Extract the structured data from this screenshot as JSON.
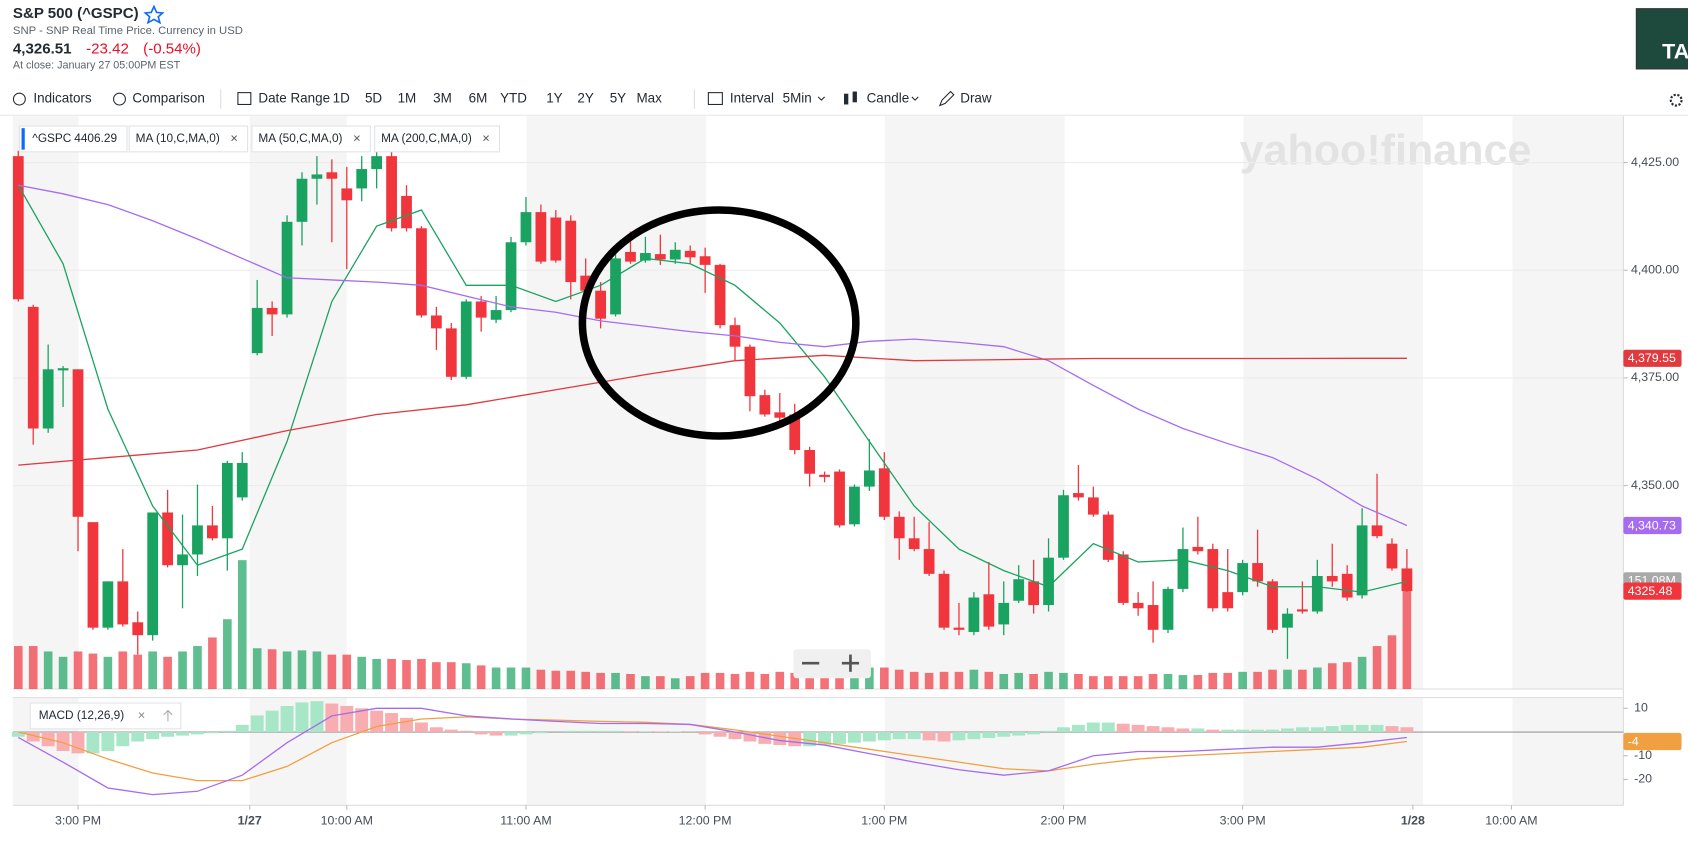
{
  "header": {
    "title": "S&P 500 (^GSPC)",
    "subtitle": "SNP - SNP Real Time Price. Currency in USD",
    "price": "4,326.51",
    "change": "-23.42",
    "change_pct": "(-0.54%)",
    "close_note": "At close: January 27 05:00PM EST"
  },
  "ad": "TA",
  "toolbar": {
    "indicators": "Indicators",
    "comparison": "Comparison",
    "date_range": "Date Range",
    "ranges": [
      "1D",
      "5D",
      "1M",
      "3M",
      "6M",
      "YTD",
      "1Y",
      "2Y",
      "5Y",
      "Max"
    ],
    "interval": "Interval",
    "interval_value": "5Min",
    "chart_type": "Candle",
    "draw": "Draw"
  },
  "chart_data": {
    "type": "candlestick",
    "symbol": "^GSPC",
    "legend_value": 4406.29,
    "watermark": "yahoo!finance",
    "categories": [
      null,
      null,
      null,
      null,
      null,
      null,
      null,
      null,
      null,
      null,
      null,
      null,
      null,
      null,
      null,
      null,
      null,
      null,
      null,
      null,
      null,
      null,
      null,
      null,
      null,
      null,
      null,
      null,
      null,
      null,
      null,
      null,
      null,
      null,
      null,
      null,
      null,
      null,
      null,
      null,
      null,
      null,
      null,
      null,
      null,
      null,
      null,
      null,
      null,
      null,
      null,
      null,
      null,
      null,
      null,
      null,
      null,
      null,
      null,
      null,
      null,
      null,
      null,
      null,
      null,
      null,
      null,
      null,
      null,
      null,
      null,
      null,
      null,
      null,
      null,
      null,
      null,
      null,
      null,
      null,
      null,
      null,
      null,
      null,
      null,
      null,
      null,
      null,
      null,
      null,
      null,
      null,
      null,
      null
    ],
    "xlim": [
      -0.36,
      107.5
    ],
    "xticks": [
      {
        "value": 4,
        "label": "3:00 PM"
      },
      {
        "value": 15.5,
        "label": "1/27"
      },
      {
        "value": 22,
        "label": "10:00 AM"
      },
      {
        "value": 34,
        "label": "11:00 AM"
      },
      {
        "value": 46,
        "label": "12:00 PM"
      },
      {
        "value": 58,
        "label": "1:00 PM"
      },
      {
        "value": 70,
        "label": "2:00 PM"
      },
      {
        "value": 82,
        "label": "3:00 PM"
      },
      {
        "value": 93.4,
        "label": "1/28"
      },
      {
        "value": 100,
        "label": "10:00 AM"
      }
    ],
    "ylim": [
      4302.75,
      4435.75
    ],
    "yticks": [
      {
        "value": 4425,
        "label": "4,425.00"
      },
      {
        "value": 4400,
        "label": "4,400.00"
      },
      {
        "value": 4375,
        "label": "4,375.00"
      },
      {
        "value": 4350,
        "label": "4,350.00"
      }
    ],
    "grid": true,
    "up_color": "#1aa260",
    "down_color": "#f0353d",
    "open": [
      4426.5,
      4391.5,
      4363.25,
      4376.75,
      4377,
      4341.5,
      4317,
      4327.75,
      4318.25,
      4315.25,
      4343.75,
      4331.5,
      4334,
      4340.75,
      4337.75,
      4347.25,
      4380.75,
      4391.25,
      4389.75,
      4411.25,
      4421.25,
      4422.75,
      4419,
      4419,
      4423.5,
      4426.5,
      4417.25,
      4409.75,
      4389.5,
      4386.5,
      4375.25,
      4392.75,
      4388.5,
      4390.75,
      4406.5,
      4413.5,
      4412.25,
      4411.5,
      4398.75,
      4395.25,
      4389.75,
      4404.25,
      4402.25,
      4403.75,
      4402.5,
      4404.5,
      4403.25,
      4401.25,
      4387.25,
      4382.25,
      4371,
      4367,
      4366.5,
      4358.25,
      4352.5,
      4353.25,
      4341,
      4349.75,
      4354,
      4342.75,
      4337.75,
      4335.25,
      4329.5,
      4317,
      4316,
      4324.75,
      4317.75,
      4323.25,
      4327.75,
      4322.25,
      4333.25,
      4348.25,
      4347.25,
      4343.25,
      4334,
      4322.75,
      4322.25,
      4316.5,
      4326,
      4335.75,
      4335.25,
      4325.25,
      4325.25,
      4332,
      4327.75,
      4317,
      4321.25,
      4320.75,
      4329,
      4329.5,
      4324.5,
      4340.75,
      4336.5,
      4330.75
    ],
    "high": [
      4427.75,
      4392,
      4382.75,
      4377.75,
      4377,
      4341.5,
      4327.75,
      4335.25,
      4320.75,
      4343.75,
      4349,
      4343.25,
      4350.25,
      4345.25,
      4355.75,
      4357.75,
      4397.75,
      4392.75,
      4412.75,
      4422.75,
      4426.5,
      4425.75,
      4424,
      4426.5,
      4427.75,
      4427.75,
      4419.75,
      4410.25,
      4391.5,
      4387.75,
      4393.25,
      4394,
      4394,
      4407.75,
      4417,
      4415.25,
      4414,
      4412.75,
      4402.75,
      4397.25,
      4404,
      4409,
      4407.75,
      4408.25,
      4406.5,
      4405.75,
      4405.25,
      4401.5,
      4389,
      4382.75,
      4372.25,
      4371.5,
      4369,
      4359,
      4353.25,
      4353.75,
      4350.25,
      4360.75,
      4357.75,
      4344,
      4342.75,
      4341.5,
      4330.25,
      4322.75,
      4325.25,
      4332.25,
      4327.75,
      4331.5,
      4332.75,
      4337.75,
      4349,
      4354.75,
      4349.75,
      4344,
      4334.75,
      4325.25,
      4327.75,
      4326.5,
      4340.25,
      4342.75,
      4336.5,
      4335.25,
      4332.75,
      4339.75,
      4328.25,
      4321.5,
      4327.75,
      4332.75,
      4336.5,
      4331.5,
      4344.75,
      4352.75,
      4337.75,
      4335.25
    ],
    "low": [
      4392.75,
      4359.5,
      4362.25,
      4368.25,
      4334.75,
      4316.5,
      4316.5,
      4317.25,
      4310.75,
      4314,
      4331,
      4321.5,
      4329,
      4337.25,
      4330.25,
      4346.5,
      4380.25,
      4384.75,
      4389,
      4405.75,
      4415.25,
      4406.5,
      4400.25,
      4416,
      4419,
      4409,
      4409,
      4389,
      4381.5,
      4374.5,
      4374.75,
      4385.75,
      4387.75,
      4390.25,
      4405.75,
      4401.5,
      4401.75,
      4393.25,
      4392.75,
      4386.5,
      4389.25,
      4401.5,
      4401.75,
      4401.25,
      4401.5,
      4401.5,
      4394.75,
      4386.5,
      4379,
      4367.25,
      4366,
      4364,
      4357.25,
      4349.75,
      4350.75,
      4340.25,
      4340.5,
      4348.75,
      4342,
      4332.75,
      4334.75,
      4329,
      4316.5,
      4315.25,
      4315.25,
      4316.5,
      4315.25,
      4322.75,
      4320.25,
      4320.75,
      4332.75,
      4346.5,
      4342.75,
      4332.25,
      4322.25,
      4319.75,
      4313.5,
      4315.75,
      4325.25,
      4334,
      4320.75,
      4320.75,
      4324.5,
      4326.5,
      4315.75,
      4309.75,
      4320.25,
      4320.25,
      4326.5,
      4323.25,
      4323.75,
      4337.75,
      4330.25,
      4325.25
    ],
    "close": [
      4393.25,
      4363.25,
      4377,
      4377.25,
      4342.75,
      4317,
      4327.75,
      4317.75,
      4315.25,
      4343.75,
      4331.5,
      4334,
      4340.75,
      4337.75,
      4355.25,
      4355.25,
      4391.25,
      4389.75,
      4411.25,
      4421.25,
      4422.25,
      4421.25,
      4416.25,
      4423.5,
      4426.5,
      4409.75,
      4409.75,
      4389.5,
      4386.5,
      4375.25,
      4392.75,
      4389,
      4390.75,
      4406.5,
      4413.5,
      4402,
      4402.25,
      4397.25,
      4395.25,
      4388.75,
      4402.75,
      4402,
      4404,
      4402.5,
      4404.75,
      4403,
      4401.25,
      4387.25,
      4382.25,
      4370.75,
      4366.5,
      4365.75,
      4358.25,
      4352.75,
      4352,
      4340.75,
      4349.75,
      4353.5,
      4342.75,
      4337.75,
      4335.25,
      4329.5,
      4317,
      4316.5,
      4324,
      4317.25,
      4322.75,
      4328.25,
      4322.25,
      4333.25,
      4347.75,
      4347.25,
      4343.25,
      4332.75,
      4322.75,
      4321.5,
      4316.5,
      4326,
      4335.25,
      4334.75,
      4321.5,
      4321.5,
      4332,
      4327.75,
      4316.5,
      4320.25,
      4320.75,
      4329,
      4327.75,
      4324,
      4340.75,
      4338.25,
      4330.75,
      4325.5
    ],
    "last_value": 4325.48,
    "volume": [
      60,
      60,
      52.5,
      45,
      52.5,
      49.5,
      45,
      52.5,
      48,
      52.5,
      45,
      52.5,
      60,
      72,
      97.5,
      180,
      57,
      55.5,
      52.5,
      54,
      52.5,
      48,
      48,
      45,
      42,
      42,
      40.5,
      42,
      37.5,
      37.5,
      36,
      33,
      30,
      30,
      30,
      27,
      25.5,
      25.5,
      24,
      22.5,
      22.5,
      21,
      18,
      18,
      15,
      18,
      22.5,
      22.5,
      21,
      24,
      21,
      24,
      22.5,
      22.5,
      27,
      30,
      30,
      30,
      30,
      27,
      24,
      22.5,
      24,
      24,
      27,
      24,
      21,
      22.5,
      21,
      24,
      22.5,
      21,
      18,
      18,
      18,
      18,
      21,
      21,
      19.5,
      19.5,
      22.5,
      22.5,
      24,
      24,
      27,
      27,
      27,
      30,
      36,
      37.5,
      45,
      60,
      75,
      151.08
    ],
    "volume_lim": [
      0,
      800
    ],
    "volume_last": {
      "value": 151.08,
      "label": "151.08M"
    },
    "series": [
      {
        "name": "MA (10,C,MA,0)",
        "color": "#1aa260",
        "x": [
          0,
          3,
          6,
          9,
          12,
          15,
          18,
          21,
          24,
          27,
          30,
          33,
          36,
          39,
          42,
          45,
          48,
          51,
          54,
          57,
          60,
          63,
          66,
          69,
          72,
          75,
          78,
          81,
          84,
          87,
          90,
          93
        ],
        "values": [
          4419.75,
          4401.5,
          4367.75,
          4345.25,
          4331.5,
          4335.25,
          4360.25,
          4392.75,
          4410.25,
          4414,
          4396.5,
          4396.5,
          4392.75,
          4396.5,
          4402.75,
          4401.5,
          4396.5,
          4387.75,
          4375.25,
          4360.25,
          4345.25,
          4335.25,
          4330.25,
          4326.5,
          4336.5,
          4332.25,
          4332.75,
          4330.25,
          4326.5,
          4326.5,
          4325.25,
          4327.75
        ]
      },
      {
        "name": "MA (50,C,MA,0)",
        "color": "#a66cf0",
        "x": [
          0,
          3,
          6,
          9,
          12,
          15,
          18,
          21,
          24,
          27,
          30,
          33,
          36,
          39,
          42,
          45,
          48,
          51,
          54,
          57,
          60,
          63,
          66,
          69,
          72,
          75,
          78,
          81,
          84,
          87,
          90,
          93
        ],
        "values": [
          4419.75,
          4417.75,
          4415.25,
          4411.5,
          4407.25,
          4402.75,
          4398.25,
          4397.75,
          4397.25,
          4396.5,
          4394,
          4391.5,
          4390.25,
          4388.25,
          4387,
          4385.75,
          4384.75,
          4383.25,
          4382.25,
          4383.5,
          4384,
          4383.25,
          4382.25,
          4379,
          4373.25,
          4367.75,
          4363.25,
          4359.75,
          4356.5,
          4351.5,
          4345.25,
          4340.73
        ],
        "last_value": {
          "value": 4340.73,
          "label": "4,340.73"
        }
      },
      {
        "name": "MA (200,C,MA,0)",
        "color": "#e0393e",
        "x": [
          0,
          6,
          12,
          18,
          24,
          30,
          36,
          42,
          48,
          54,
          60,
          66,
          72,
          78,
          84,
          90,
          93
        ],
        "values": [
          4354.75,
          4356.5,
          4358.25,
          4362.75,
          4366.5,
          4368.75,
          4372.25,
          4375.75,
          4379,
          4380.25,
          4379,
          4379.25,
          4379.5,
          4379.5,
          4379.5,
          4379.55,
          4379.55
        ],
        "last_value": {
          "value": 4379.55,
          "label": "4,379.55"
        }
      }
    ],
    "macd": {
      "name": "MACD (12,26,9)",
      "ylim": [
        -30.9,
        14.5
      ],
      "yticks": [
        10,
        -10,
        -20
      ],
      "macd_color": "#a66cf0",
      "signal_color": "#f0a040",
      "up_color": "#a8e6c8",
      "down_color": "#f8aeb0",
      "x": [
        0,
        3,
        6,
        9,
        12,
        15,
        18,
        21,
        24,
        27,
        30,
        33,
        36,
        39,
        42,
        45,
        48,
        51,
        54,
        57,
        60,
        63,
        66,
        69,
        72,
        75,
        78,
        81,
        84,
        87,
        90,
        93
      ],
      "macd": [
        -2.3,
        -12.7,
        -23.6,
        -26.4,
        -25,
        -18.2,
        -4.5,
        6.8,
        10,
        10,
        6.8,
        5.5,
        4.5,
        3.6,
        3.6,
        3.2,
        0,
        -3.6,
        -5.5,
        -9.1,
        -12.7,
        -15.9,
        -18.2,
        -16.4,
        -10,
        -8.2,
        -8.2,
        -7.3,
        -6.4,
        -6.4,
        -4.5,
        -2.3
      ],
      "signal": [
        0,
        -4.5,
        -11.4,
        -17.3,
        -20.5,
        -20.5,
        -14.5,
        -4.5,
        2.3,
        5.5,
        6.4,
        5.5,
        5,
        4.5,
        4.1,
        3.2,
        0.9,
        -1.8,
        -4.5,
        -7.3,
        -10,
        -12.7,
        -15.5,
        -16.4,
        -13.6,
        -11.4,
        -10,
        -9.1,
        -8.2,
        -7.3,
        -6.4,
        -4
      ],
      "histogram": [
        -2,
        -4,
        -6,
        -8,
        -9,
        -9,
        -8,
        -6,
        -4,
        -3,
        -2,
        -1.5,
        -1,
        -0.5,
        0.5,
        3,
        7,
        9,
        11,
        12.5,
        13,
        12,
        11,
        10,
        9,
        8,
        6,
        4,
        2,
        1,
        0.5,
        -1,
        -1.5,
        -1.5,
        -1,
        -0.5,
        0,
        0.5,
        0.5,
        0.5,
        0.5,
        0.3,
        0.3,
        0.2,
        0.2,
        0.1,
        -1,
        -2,
        -3,
        -4,
        -5,
        -5.5,
        -6,
        -6,
        -5.5,
        -5,
        -4.5,
        -4,
        -3.5,
        -3,
        -3,
        -3.5,
        -4,
        -3.5,
        -3,
        -2.5,
        -2,
        -1.5,
        -1,
        0.5,
        2,
        3,
        4,
        4,
        3.5,
        3,
        2.5,
        2,
        1.5,
        1.5,
        1,
        1,
        1,
        1,
        1,
        1.5,
        2,
        2,
        2.5,
        3,
        3,
        3,
        2.5,
        2
      ],
      "last_value": -4
    }
  }
}
